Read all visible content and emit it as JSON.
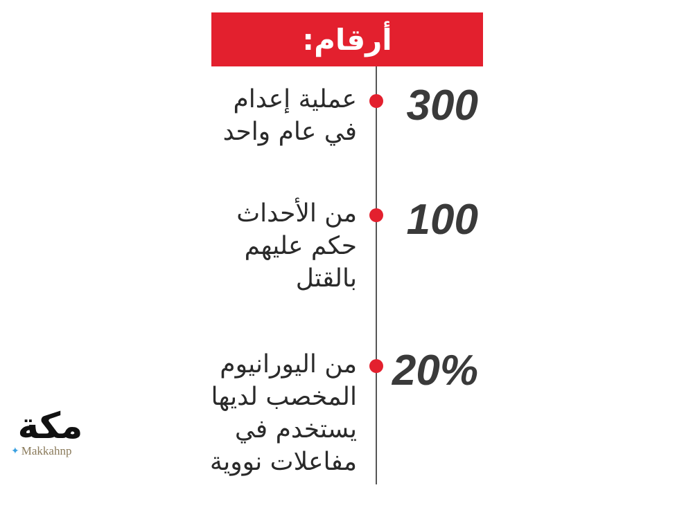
{
  "header": {
    "title": "أرقام:"
  },
  "colors": {
    "accent": "#e3202e",
    "number": "#3a3a3a"
  },
  "facts": [
    {
      "number": "300",
      "text": "عملية إعدام\nفي عام واحد"
    },
    {
      "number": "100",
      "text": "من الأحداث\nحكم عليهم\nبالقتل"
    },
    {
      "number": "20%",
      "text": "من اليورانيوم\nالمخصب لديها\nيستخدم في\nمفاعلات نووية"
    }
  ],
  "logo": {
    "mark": "مكة",
    "handle": "Makkahnp",
    "icon": "twitter-bird-icon"
  }
}
